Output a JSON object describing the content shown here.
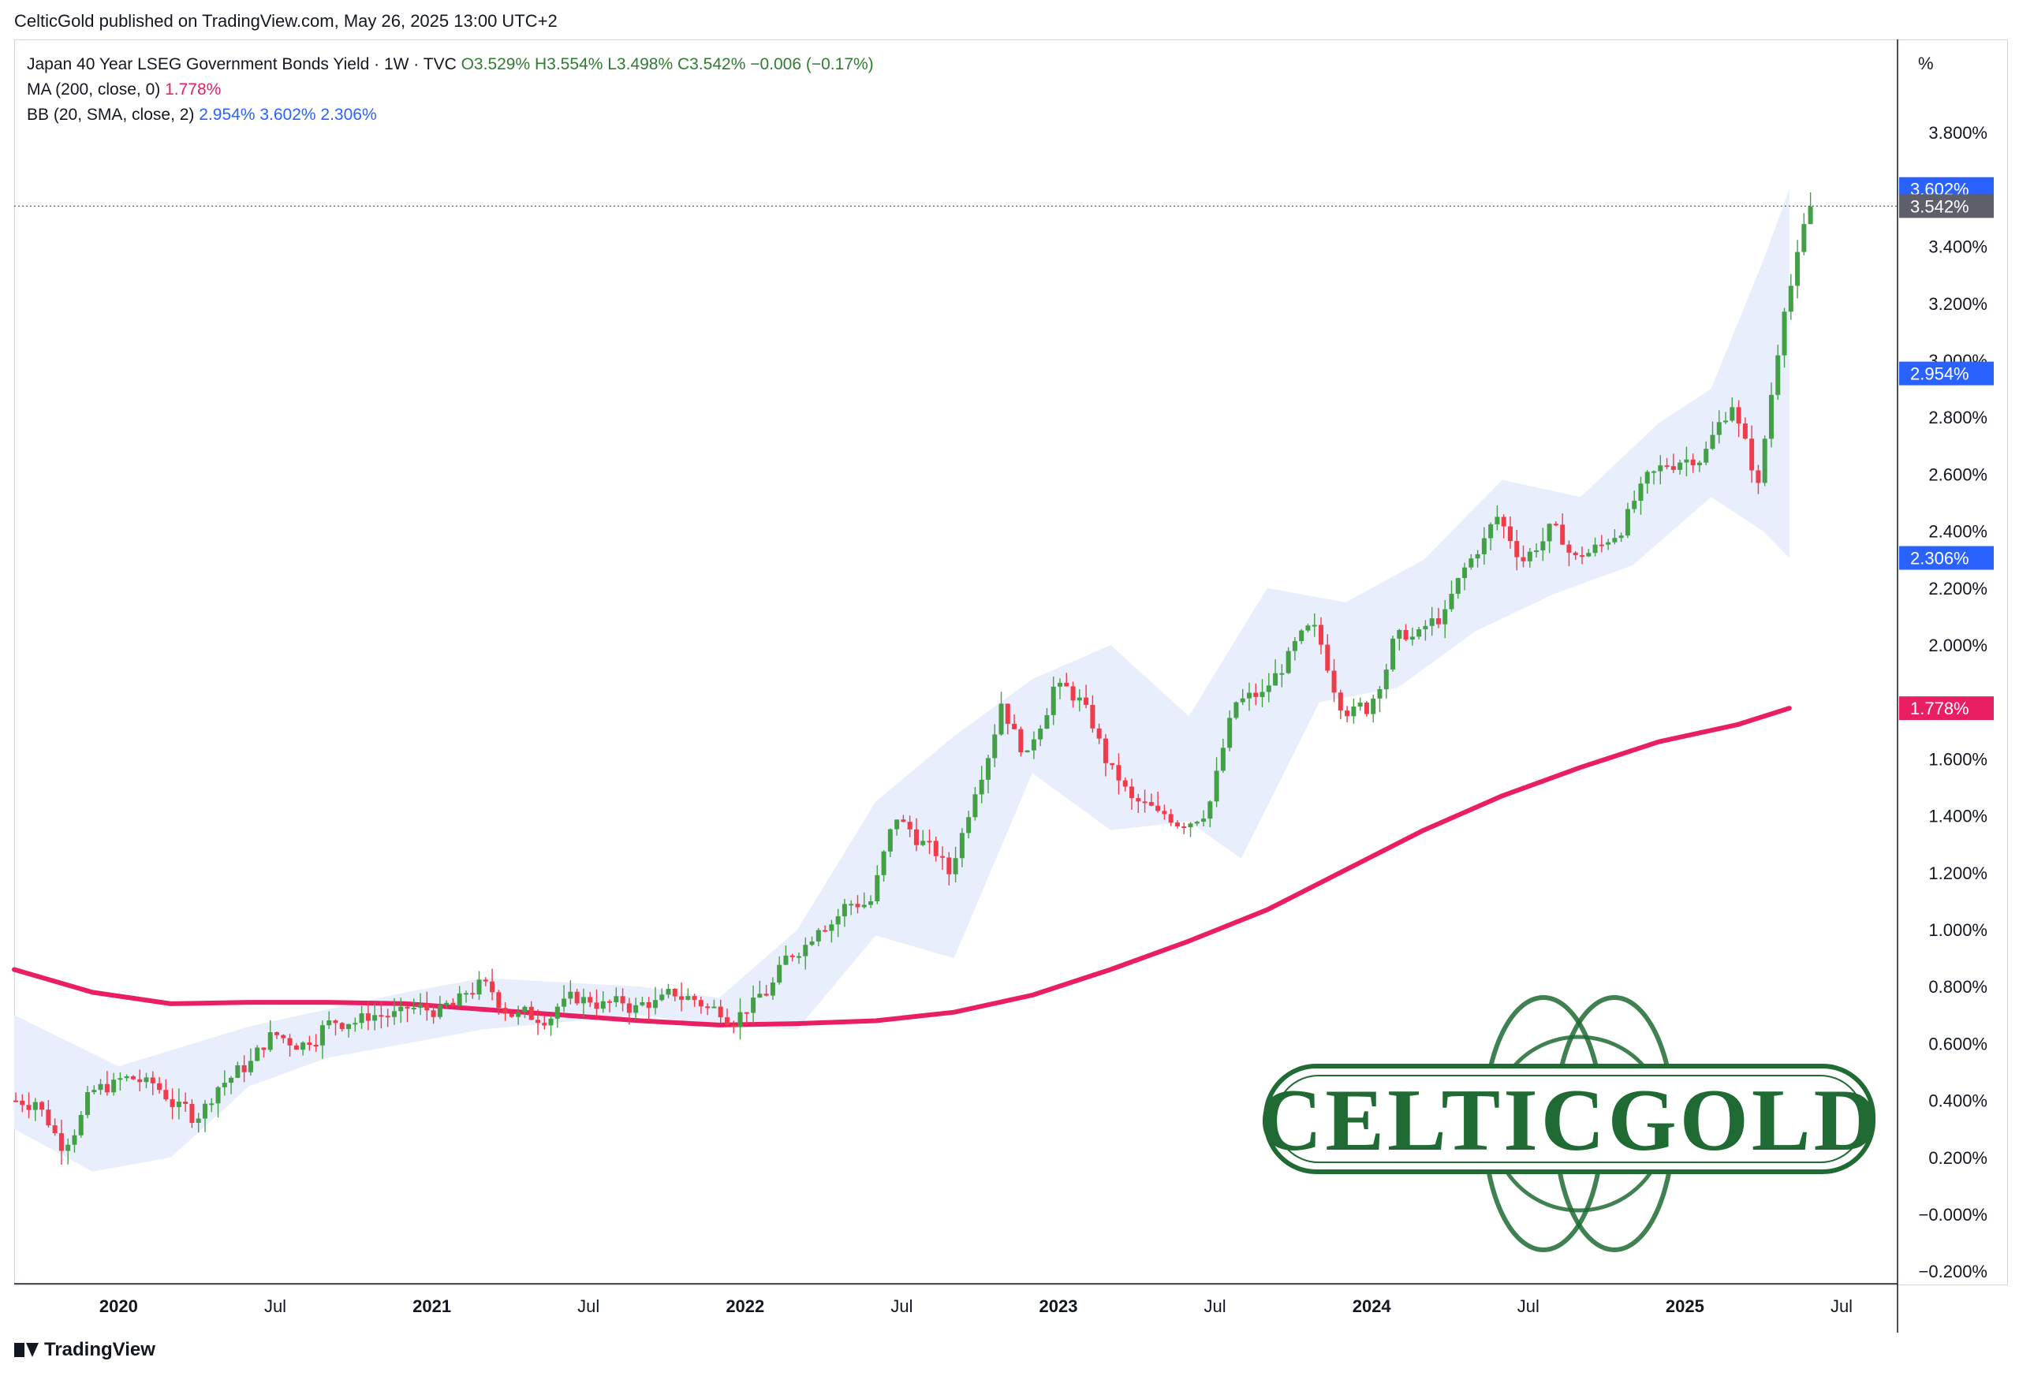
{
  "header": {
    "publisher": "CelticGold published on TradingView.com, May 26, 2025 13:00 UTC+2"
  },
  "legend": {
    "symbol": "Japan 40 Year LSEG Government Bonds Yield · 1W · TVC",
    "open": "O3.529%",
    "high": "H3.554%",
    "low": "L3.498%",
    "close": "C3.542%",
    "change": "−0.006 (−0.17%)",
    "ma_label": "MA (200, close, 0)",
    "ma_value": "1.778%",
    "bb_label": "BB (20, SMA, close, 2)",
    "bb_basis": "2.954%",
    "bb_upper": "3.602%",
    "bb_lower": "2.306%"
  },
  "axis": {
    "unit": "%",
    "y_ticks": [
      "3.800%",
      "3.400%",
      "3.200%",
      "3.000%",
      "2.800%",
      "2.600%",
      "2.400%",
      "2.200%",
      "2.000%",
      "1.600%",
      "1.400%",
      "1.200%",
      "1.000%",
      "0.800%",
      "0.600%",
      "0.400%",
      "0.200%",
      "−0.000%",
      "−0.200%"
    ],
    "x_ticks": [
      "2020",
      "Jul",
      "2021",
      "Jul",
      "2022",
      "Jul",
      "2023",
      "Jul",
      "2024",
      "Jul",
      "2025",
      "Jul"
    ]
  },
  "price_labels": {
    "bb_upper": "3.602%",
    "last": "3.542%",
    "bb_basis": "2.954%",
    "bb_lower": "2.306%",
    "ma": "1.778%"
  },
  "watermark": {
    "text": "CELTICGOLD"
  },
  "footer": {
    "brand": "TradingView"
  },
  "colors": {
    "up": "#43a047",
    "down": "#ef3b4a",
    "ma": "#e91e63",
    "bb_fill": "#e8eefc",
    "bb_label": "#2962ff",
    "last_label": "#5d606b",
    "watermark": "#1f6b33"
  },
  "chart_data": {
    "type": "candlestick",
    "title": "Japan 40 Year LSEG Government Bonds Yield · 1W · TVC",
    "ylabel": "%",
    "ylim": [
      -0.2,
      3.95
    ],
    "x_range": [
      "2019-09",
      "2025-07"
    ],
    "series": [
      {
        "name": "Japan 40 Year LSEG Government Bonds Yield",
        "kind": "weekly_close_approx",
        "points": [
          [
            "2019-09",
            0.4
          ],
          [
            "2019-10",
            0.25
          ],
          [
            "2019-11",
            0.4
          ],
          [
            "2019-12",
            0.45
          ],
          [
            "2020-01",
            0.47
          ],
          [
            "2020-02",
            0.42
          ],
          [
            "2020-03",
            0.35
          ],
          [
            "2020-04",
            0.45
          ],
          [
            "2020-05",
            0.52
          ],
          [
            "2020-06",
            0.62
          ],
          [
            "2020-07",
            0.6
          ],
          [
            "2020-08",
            0.65
          ],
          [
            "2020-09",
            0.68
          ],
          [
            "2020-10",
            0.7
          ],
          [
            "2020-11",
            0.7
          ],
          [
            "2020-12",
            0.72
          ],
          [
            "2021-01",
            0.73
          ],
          [
            "2021-02",
            0.8
          ],
          [
            "2021-03",
            0.72
          ],
          [
            "2021-04",
            0.7
          ],
          [
            "2021-05",
            0.73
          ],
          [
            "2021-06",
            0.75
          ],
          [
            "2021-07",
            0.74
          ],
          [
            "2021-08",
            0.72
          ],
          [
            "2021-09",
            0.75
          ],
          [
            "2021-10",
            0.76
          ],
          [
            "2021-11",
            0.72
          ],
          [
            "2021-12",
            0.7
          ],
          [
            "2022-01",
            0.78
          ],
          [
            "2022-02",
            0.92
          ],
          [
            "2022-03",
            1.02
          ],
          [
            "2022-04",
            1.08
          ],
          [
            "2022-05",
            1.1
          ],
          [
            "2022-06",
            1.4
          ],
          [
            "2022-07",
            1.3
          ],
          [
            "2022-08",
            1.2
          ],
          [
            "2022-09",
            1.5
          ],
          [
            "2022-10",
            1.8
          ],
          [
            "2022-11",
            1.6
          ],
          [
            "2022-12",
            1.85
          ],
          [
            "2023-01",
            1.8
          ],
          [
            "2023-02",
            1.6
          ],
          [
            "2023-03",
            1.45
          ],
          [
            "2023-04",
            1.4
          ],
          [
            "2023-05",
            1.38
          ],
          [
            "2023-06",
            1.45
          ],
          [
            "2023-07",
            1.8
          ],
          [
            "2023-08",
            1.82
          ],
          [
            "2023-09",
            1.95
          ],
          [
            "2023-10",
            2.05
          ],
          [
            "2023-11",
            1.8
          ],
          [
            "2023-12",
            1.78
          ],
          [
            "2024-01",
            2.0
          ],
          [
            "2024-02",
            2.03
          ],
          [
            "2024-03",
            2.1
          ],
          [
            "2024-04",
            2.3
          ],
          [
            "2024-05",
            2.45
          ],
          [
            "2024-06",
            2.3
          ],
          [
            "2024-07",
            2.4
          ],
          [
            "2024-08",
            2.3
          ],
          [
            "2024-09",
            2.35
          ],
          [
            "2024-10",
            2.45
          ],
          [
            "2024-11",
            2.6
          ],
          [
            "2024-12",
            2.65
          ],
          [
            "2025-01",
            2.68
          ],
          [
            "2025-02",
            2.85
          ],
          [
            "2025-03",
            2.55
          ],
          [
            "2025-04",
            3.2
          ],
          [
            "2025-05",
            3.54
          ]
        ]
      },
      {
        "name": "MA (200, close, 0)",
        "points": [
          [
            "2019-09",
            0.86
          ],
          [
            "2019-12",
            0.78
          ],
          [
            "2020-03",
            0.74
          ],
          [
            "2020-06",
            0.745
          ],
          [
            "2020-09",
            0.745
          ],
          [
            "2020-12",
            0.74
          ],
          [
            "2021-03",
            0.72
          ],
          [
            "2021-06",
            0.7
          ],
          [
            "2021-09",
            0.68
          ],
          [
            "2021-12",
            0.665
          ],
          [
            "2022-03",
            0.67
          ],
          [
            "2022-06",
            0.68
          ],
          [
            "2022-09",
            0.71
          ],
          [
            "2022-12",
            0.77
          ],
          [
            "2023-03",
            0.86
          ],
          [
            "2023-06",
            0.96
          ],
          [
            "2023-09",
            1.07
          ],
          [
            "2023-12",
            1.21
          ],
          [
            "2024-03",
            1.35
          ],
          [
            "2024-06",
            1.47
          ],
          [
            "2024-09",
            1.57
          ],
          [
            "2024-12",
            1.66
          ],
          [
            "2025-03",
            1.72
          ],
          [
            "2025-05",
            1.778
          ]
        ]
      },
      {
        "name": "BB upper",
        "points": [
          [
            "2019-09",
            0.7
          ],
          [
            "2020-01",
            0.52
          ],
          [
            "2020-06",
            0.66
          ],
          [
            "2020-12",
            0.78
          ],
          [
            "2021-03",
            0.83
          ],
          [
            "2021-09",
            0.8
          ],
          [
            "2021-12",
            0.76
          ],
          [
            "2022-03",
            1.0
          ],
          [
            "2022-06",
            1.45
          ],
          [
            "2022-09",
            1.68
          ],
          [
            "2022-12",
            1.88
          ],
          [
            "2023-03",
            2.0
          ],
          [
            "2023-06",
            1.75
          ],
          [
            "2023-09",
            2.2
          ],
          [
            "2023-12",
            2.15
          ],
          [
            "2024-03",
            2.3
          ],
          [
            "2024-06",
            2.58
          ],
          [
            "2024-09",
            2.52
          ],
          [
            "2024-12",
            2.78
          ],
          [
            "2025-02",
            2.9
          ],
          [
            "2025-04",
            3.35
          ],
          [
            "2025-05",
            3.602
          ]
        ]
      },
      {
        "name": "BB lower",
        "points": [
          [
            "2019-09",
            0.3
          ],
          [
            "2019-12",
            0.15
          ],
          [
            "2020-03",
            0.2
          ],
          [
            "2020-06",
            0.45
          ],
          [
            "2020-09",
            0.55
          ],
          [
            "2020-12",
            0.6
          ],
          [
            "2021-03",
            0.65
          ],
          [
            "2021-09",
            0.7
          ],
          [
            "2021-12",
            0.66
          ],
          [
            "2022-03",
            0.65
          ],
          [
            "2022-06",
            0.98
          ],
          [
            "2022-09",
            0.9
          ],
          [
            "2022-12",
            1.55
          ],
          [
            "2023-03",
            1.35
          ],
          [
            "2023-06",
            1.38
          ],
          [
            "2023-08",
            1.25
          ],
          [
            "2023-11",
            1.8
          ],
          [
            "2024-02",
            1.85
          ],
          [
            "2024-05",
            2.05
          ],
          [
            "2024-08",
            2.18
          ],
          [
            "2024-11",
            2.28
          ],
          [
            "2025-02",
            2.52
          ],
          [
            "2025-04",
            2.4
          ],
          [
            "2025-05",
            2.306
          ]
        ]
      }
    ]
  }
}
